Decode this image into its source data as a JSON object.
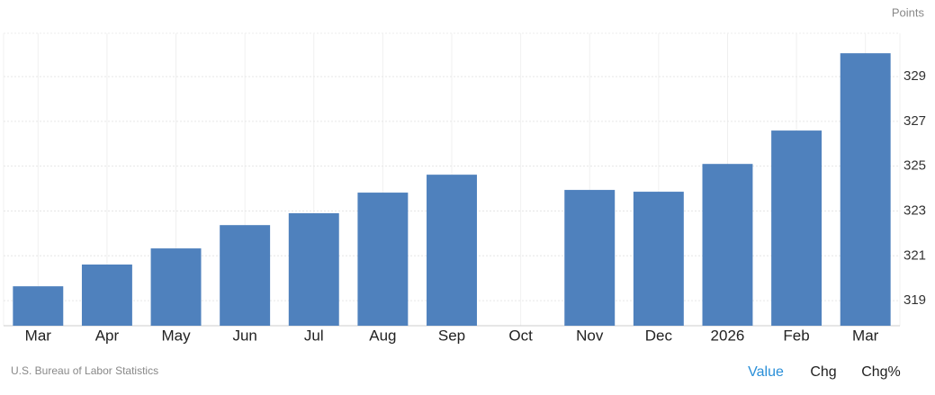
{
  "chart_data": {
    "type": "bar",
    "y_axis_label": "Points",
    "categories": [
      "Mar",
      "Apr",
      "May",
      "Jun",
      "Jul",
      "Aug",
      "Sep",
      "Oct",
      "Nov",
      "Dec",
      "2026",
      "Feb",
      "Mar"
    ],
    "values": [
      319.64,
      320.61,
      321.33,
      322.37,
      322.9,
      323.82,
      324.62,
      null,
      323.94,
      323.86,
      325.1,
      326.59,
      330.04
    ],
    "color": "#4f81bd",
    "ylim": [
      317.88,
      330.93
    ],
    "yticks": [
      319,
      321,
      323,
      325,
      327,
      329
    ],
    "grid": true
  },
  "source": "U.S. Bureau of Labor Statistics",
  "buttons": [
    "Value",
    "Chg",
    "Chg%"
  ]
}
